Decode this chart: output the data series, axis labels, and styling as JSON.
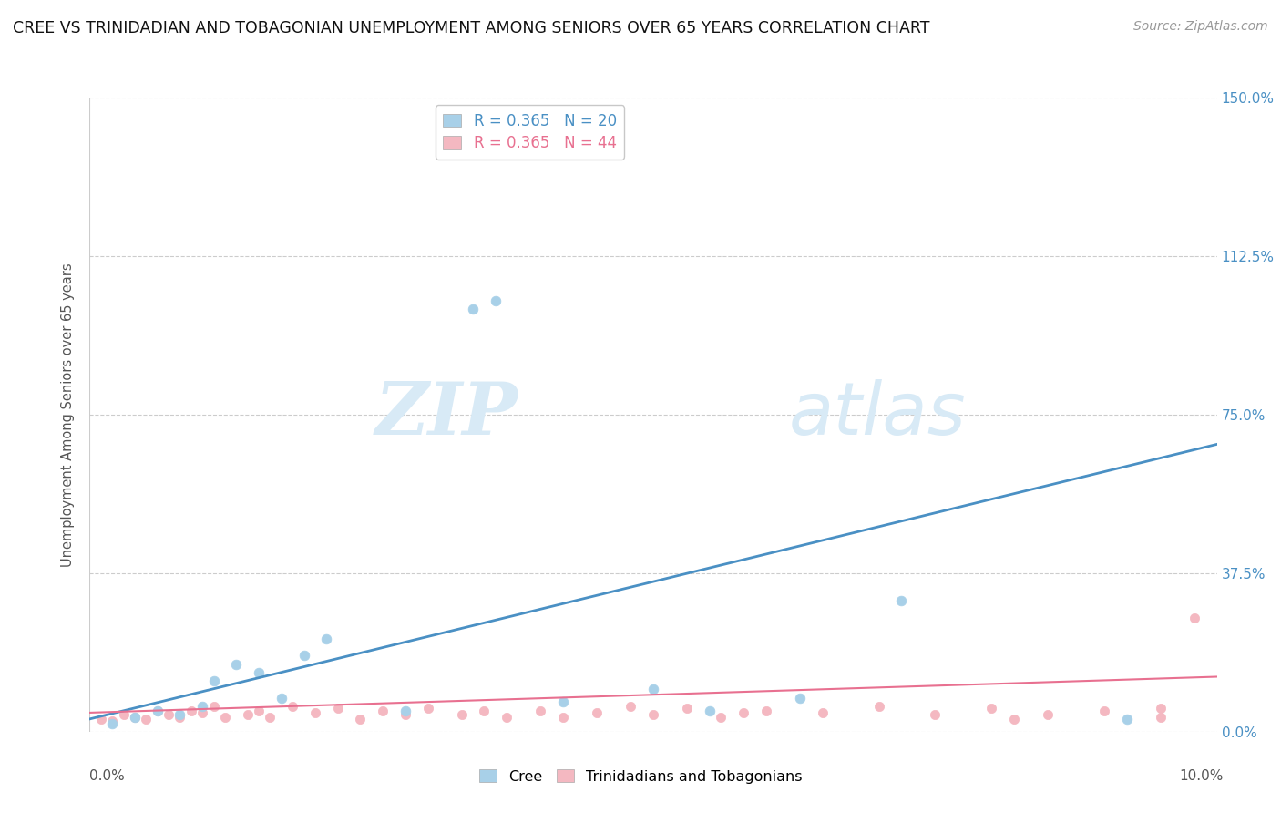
{
  "title": "CREE VS TRINIDADIAN AND TOBAGONIAN UNEMPLOYMENT AMONG SENIORS OVER 65 YEARS CORRELATION CHART",
  "source": "Source: ZipAtlas.com",
  "ylabel": "Unemployment Among Seniors over 65 years",
  "ytick_vals": [
    0.0,
    37.5,
    75.0,
    112.5,
    150.0
  ],
  "xlim": [
    0.0,
    10.0
  ],
  "ylim": [
    0.0,
    150.0
  ],
  "legend_r_cree": "R = 0.365",
  "legend_n_cree": "N = 20",
  "legend_r_tnt": "R = 0.365",
  "legend_n_tnt": "N = 44",
  "cree_color": "#a8d0e8",
  "tnt_color": "#f4b8c1",
  "cree_line_color": "#4a90c4",
  "tnt_line_color": "#e87090",
  "watermark_zip": "ZIP",
  "watermark_atlas": "atlas",
  "watermark_color": "#d8eaf6",
  "cree_scatter_x": [
    0.2,
    0.4,
    0.6,
    0.8,
    1.0,
    1.1,
    1.3,
    1.5,
    1.7,
    1.9,
    2.1,
    2.8,
    3.4,
    3.6,
    4.2,
    5.0,
    5.5,
    6.3,
    7.2,
    9.2
  ],
  "cree_scatter_y": [
    2.0,
    3.5,
    5.0,
    4.0,
    6.0,
    12.0,
    16.0,
    14.0,
    8.0,
    18.0,
    22.0,
    5.0,
    100.0,
    102.0,
    7.0,
    10.0,
    5.0,
    8.0,
    31.0,
    3.0
  ],
  "tnt_scatter_x": [
    0.1,
    0.2,
    0.3,
    0.4,
    0.5,
    0.6,
    0.7,
    0.8,
    0.9,
    1.0,
    1.1,
    1.2,
    1.4,
    1.5,
    1.6,
    1.8,
    2.0,
    2.2,
    2.4,
    2.6,
    2.8,
    3.0,
    3.3,
    3.5,
    3.7,
    4.0,
    4.5,
    4.8,
    5.0,
    5.3,
    5.6,
    6.0,
    6.5,
    7.0,
    7.5,
    8.0,
    8.5,
    9.0,
    9.5,
    9.8,
    4.2,
    5.8,
    8.2,
    9.5
  ],
  "tnt_scatter_y": [
    3.0,
    2.5,
    4.0,
    3.5,
    3.0,
    5.0,
    4.0,
    3.5,
    5.0,
    4.5,
    6.0,
    3.5,
    4.0,
    5.0,
    3.5,
    6.0,
    4.5,
    5.5,
    3.0,
    5.0,
    4.0,
    5.5,
    4.0,
    5.0,
    3.5,
    5.0,
    4.5,
    6.0,
    4.0,
    5.5,
    3.5,
    5.0,
    4.5,
    6.0,
    4.0,
    5.5,
    4.0,
    5.0,
    3.5,
    27.0,
    3.5,
    4.5,
    3.0,
    5.5
  ],
  "cree_line_x": [
    0.0,
    10.0
  ],
  "cree_line_y": [
    3.0,
    68.0
  ],
  "tnt_line_x": [
    0.0,
    10.0
  ],
  "tnt_line_y": [
    4.5,
    13.0
  ]
}
